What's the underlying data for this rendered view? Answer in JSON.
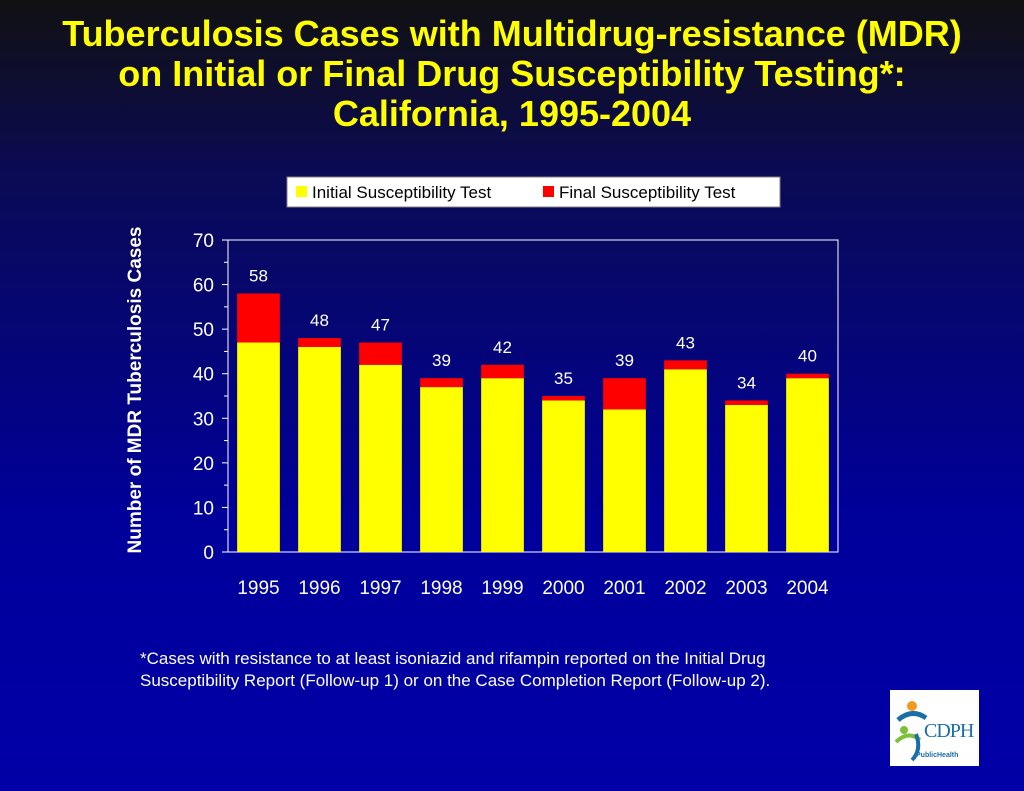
{
  "title": "Tuberculosis Cases with Multidrug-resistance (MDR) on Initial or Final Drug Susceptibility Testing*: California, 1995-2004",
  "footnote": "*Cases with resistance to at least isoniazid and rifampin reported on the Initial Drug Susceptibility Report  (Follow-up 1) or on the Case Completion Report (Follow-up 2).",
  "logo": {
    "text": "CDPH",
    "subtext": "PublicHealth",
    "icon": "cdph-logo-icon"
  },
  "colors": {
    "initial": "#ffff00",
    "final": "#ff0000",
    "text": "#ffffff",
    "title": "#ffff00"
  },
  "chart_data": {
    "type": "bar",
    "stacked": true,
    "categories": [
      "1995",
      "1996",
      "1997",
      "1998",
      "1999",
      "2000",
      "2001",
      "2002",
      "2003",
      "2004"
    ],
    "series": [
      {
        "name": "Initial Susceptibility Test",
        "values": [
          47,
          46,
          42,
          37,
          39,
          34,
          32,
          41,
          33,
          39
        ]
      },
      {
        "name": "Final Susceptibility Test",
        "values": [
          11,
          2,
          5,
          2,
          3,
          1,
          7,
          2,
          1,
          1
        ]
      }
    ],
    "totals": [
      58,
      48,
      47,
      39,
      42,
      35,
      39,
      43,
      34,
      40
    ],
    "xlabel": "",
    "ylabel": "Number of MDR Tuberculosis Cases",
    "ylim": [
      0,
      70
    ],
    "yticks": [
      0,
      10,
      20,
      30,
      40,
      50,
      60,
      70
    ],
    "legend_position": "top",
    "grid": false
  }
}
